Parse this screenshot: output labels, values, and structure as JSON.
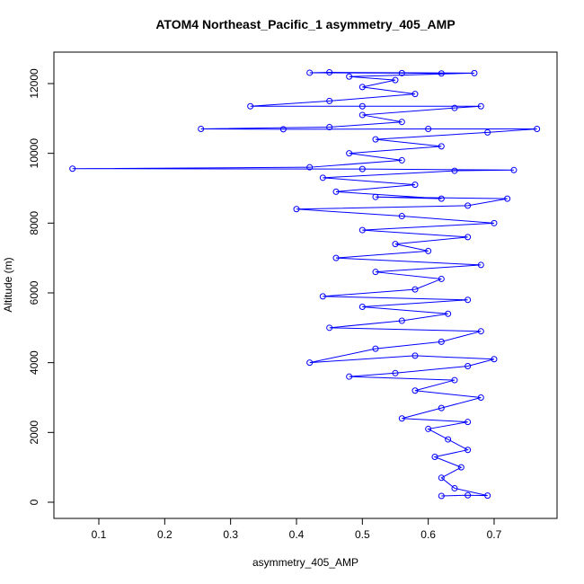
{
  "chart_data": {
    "type": "scatter",
    "lines": true,
    "title": "ATOM4 Northeast_Pacific_1 asymmetry_405_AMP",
    "x_label": "asymmetry_405_AMP",
    "y_label": "Altitude (m)",
    "color": "#0000ff",
    "x": [
      0.62,
      0.66,
      0.69,
      0.64,
      0.62,
      0.65,
      0.61,
      0.66,
      0.63,
      0.6,
      0.66,
      0.56,
      0.62,
      0.68,
      0.58,
      0.64,
      0.48,
      0.55,
      0.66,
      0.7,
      0.58,
      0.42,
      0.52,
      0.62,
      0.68,
      0.45,
      0.56,
      0.63,
      0.5,
      0.66,
      0.44,
      0.58,
      0.62,
      0.52,
      0.68,
      0.46,
      0.6,
      0.55,
      0.66,
      0.5,
      0.7,
      0.56,
      0.4,
      0.66,
      0.72,
      0.52,
      0.62,
      0.46,
      0.58,
      0.44,
      0.64,
      0.73,
      0.5,
      0.06,
      0.42,
      0.56,
      0.48,
      0.62,
      0.52,
      0.69,
      0.765,
      0.6,
      0.38,
      0.255,
      0.45,
      0.56,
      0.5,
      0.64,
      0.68,
      0.5,
      0.33,
      0.45,
      0.58,
      0.5,
      0.55,
      0.48,
      0.67,
      0.45,
      0.42,
      0.56,
      0.62
    ],
    "y": [
      180,
      200,
      190,
      400,
      700,
      1000,
      1300,
      1500,
      1800,
      2100,
      2300,
      2400,
      2700,
      3000,
      3200,
      3500,
      3600,
      3700,
      3900,
      4100,
      4200,
      4000,
      4400,
      4600,
      4900,
      5000,
      5200,
      5400,
      5600,
      5800,
      5900,
      6100,
      6400,
      6600,
      6800,
      7000,
      7200,
      7400,
      7600,
      7800,
      8000,
      8200,
      8400,
      8500,
      8700,
      8750,
      8700,
      8900,
      9100,
      9300,
      9500,
      9520,
      9550,
      9560,
      9600,
      9800,
      10000,
      10200,
      10400,
      10600,
      10700,
      10700,
      10690,
      10700,
      10750,
      10900,
      11100,
      11300,
      11350,
      11350,
      11350,
      11500,
      11700,
      11900,
      12100,
      12200,
      12300,
      12320,
      12310,
      12300,
      12290
    ],
    "xlim": [
      0.0318,
      0.7955
    ],
    "ylim": [
      -464,
      12901
    ],
    "xticks": [
      0.1,
      0.2,
      0.3,
      0.4,
      0.5,
      0.6,
      0.7
    ],
    "yticks": [
      0,
      2000,
      4000,
      6000,
      8000,
      10000,
      12000
    ]
  }
}
